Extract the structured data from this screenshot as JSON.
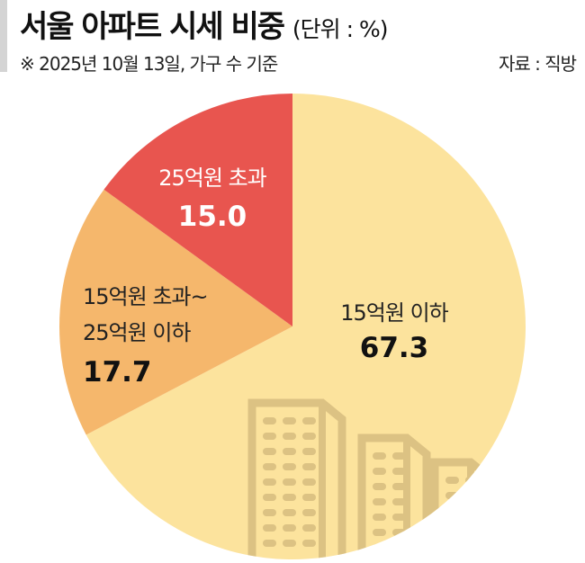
{
  "header": {
    "title": "서울 아파트 시세 비중",
    "unit": "(단위 : %)",
    "note": "※ 2025년 10월 13일, 가구 수 기준",
    "source": "자료 : 직방"
  },
  "chart_data": {
    "type": "pie",
    "title": "서울 아파트 시세 비중",
    "unit": "%",
    "slices": [
      {
        "label": "15억원 이하",
        "value": 67.3,
        "color": "#FCE39D"
      },
      {
        "label_lines": [
          "15억원 초과~",
          "25억원 이하"
        ],
        "value": 17.7,
        "color": "#F5B76C"
      },
      {
        "label": "25억원 초과",
        "value": 15.0,
        "color": "#E8554F"
      }
    ],
    "value_labels": [
      "67.3",
      "17.7",
      "15.0"
    ],
    "start": "top",
    "direction": "clockwise",
    "decoration": "building-icon",
    "decoration_color": "#DCC283"
  }
}
